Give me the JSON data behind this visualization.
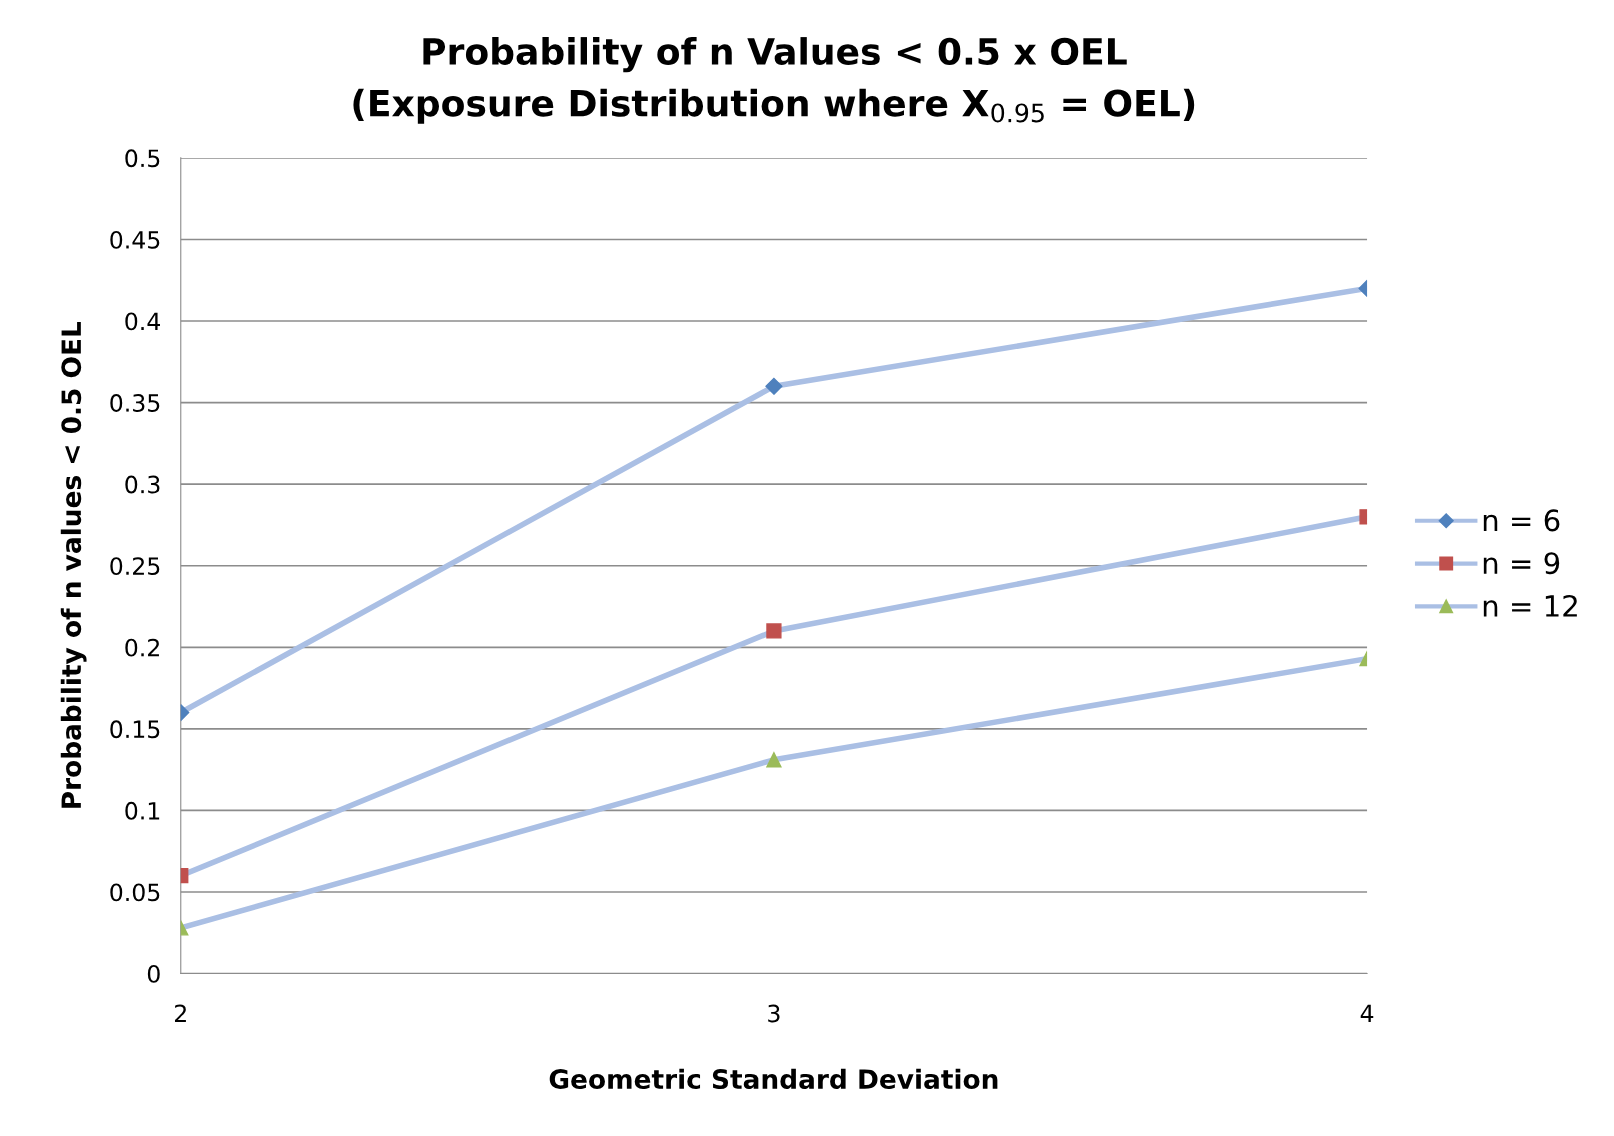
{
  "chart_data": {
    "type": "line",
    "title": "Probability of n Values < 0.5 x OEL\n(Exposure Distribution where X$_{0.95}$ = OEL)",
    "xlabel": "Geometric Standard Deviation",
    "ylabel": "Probability of n values < 0.5 OEL",
    "x": [
      2,
      3,
      4
    ],
    "series": [
      {
        "name": "n = 6",
        "color": "#4f81bd",
        "marker": "diamond",
        "values": [
          0.16,
          0.36,
          0.42
        ]
      },
      {
        "name": "n = 9",
        "color": "#c0504d",
        "marker": "square",
        "values": [
          0.06,
          0.21,
          0.28
        ]
      },
      {
        "name": "n = 12",
        "color": "#9bbb59",
        "marker": "triangle",
        "values": [
          0.028,
          0.131,
          0.193
        ]
      }
    ],
    "xlim": [
      2,
      4
    ],
    "xticks": [
      2,
      3,
      4
    ],
    "ylim": [
      0,
      0.5
    ],
    "yticks": [
      0,
      0.05,
      0.1,
      0.15,
      0.2,
      0.25,
      0.3,
      0.35,
      0.4,
      0.45,
      0.5
    ],
    "grid": "y",
    "legend": "right"
  }
}
